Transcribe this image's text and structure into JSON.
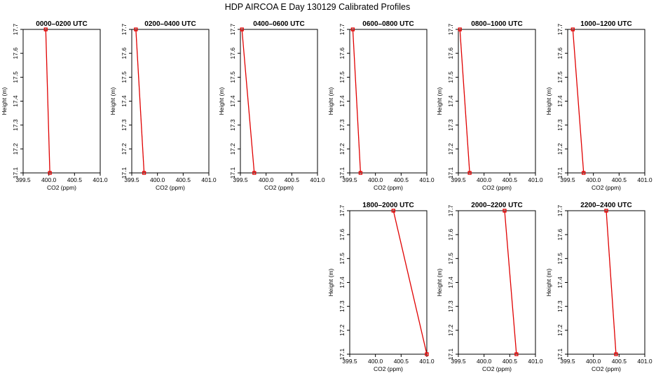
{
  "figure": {
    "title": "HDP AIRCOA E  Day 130129  Calibrated Profiles",
    "line_color": "#e00000",
    "point_color": "#e00000"
  },
  "chart_data": [
    {
      "type": "line",
      "title": "0000–0200 UTC",
      "xlabel": "CO2 (ppm)",
      "ylabel": "Height (m)",
      "xlim": [
        399.5,
        401.0
      ],
      "ylim": [
        17.1,
        17.7
      ],
      "xticks": [
        "399.5",
        "400.0",
        "400.5",
        "401.0"
      ],
      "yticks": [
        "17.1",
        "17.2",
        "17.3",
        "17.4",
        "17.5",
        "17.6",
        "17.7"
      ],
      "x": [
        399.94,
        400.02
      ],
      "y": [
        17.7,
        17.1
      ]
    },
    {
      "type": "line",
      "title": "0200–0400 UTC",
      "xlabel": "CO2 (ppm)",
      "ylabel": "Height (m)",
      "xlim": [
        399.5,
        401.0
      ],
      "ylim": [
        17.1,
        17.7
      ],
      "xticks": [
        "399.5",
        "400.0",
        "400.5",
        "401.0"
      ],
      "yticks": [
        "17.1",
        "17.2",
        "17.3",
        "17.4",
        "17.5",
        "17.6",
        "17.7"
      ],
      "x": [
        399.58,
        399.74
      ],
      "y": [
        17.7,
        17.1
      ]
    },
    {
      "type": "line",
      "title": "0400–0600 UTC",
      "xlabel": "CO2 (ppm)",
      "ylabel": "Height (m)",
      "xlim": [
        399.5,
        401.0
      ],
      "ylim": [
        17.1,
        17.7
      ],
      "xticks": [
        "399.5",
        "400.0",
        "400.5",
        "401.0"
      ],
      "yticks": [
        "17.1",
        "17.2",
        "17.3",
        "17.4",
        "17.5",
        "17.6",
        "17.7"
      ],
      "x": [
        399.53,
        399.77
      ],
      "y": [
        17.7,
        17.1
      ]
    },
    {
      "type": "line",
      "title": "0600–0800 UTC",
      "xlabel": "CO2 (ppm)",
      "ylabel": "Height (m)",
      "xlim": [
        399.5,
        401.0
      ],
      "ylim": [
        17.1,
        17.7
      ],
      "xticks": [
        "399.5",
        "400.0",
        "400.5",
        "401.0"
      ],
      "yticks": [
        "17.1",
        "17.2",
        "17.3",
        "17.4",
        "17.5",
        "17.6",
        "17.7"
      ],
      "x": [
        399.56,
        399.71
      ],
      "y": [
        17.7,
        17.1
      ]
    },
    {
      "type": "line",
      "title": "0800–1000 UTC",
      "xlabel": "CO2 (ppm)",
      "ylabel": "Height (m)",
      "xlim": [
        399.5,
        401.0
      ],
      "ylim": [
        17.1,
        17.7
      ],
      "xticks": [
        "399.5",
        "400.0",
        "400.5",
        "401.0"
      ],
      "yticks": [
        "17.1",
        "17.2",
        "17.3",
        "17.4",
        "17.5",
        "17.6",
        "17.7"
      ],
      "x": [
        399.53,
        399.72
      ],
      "y": [
        17.7,
        17.1
      ]
    },
    {
      "type": "line",
      "title": "1000–1200 UTC",
      "xlabel": "CO2 (ppm)",
      "ylabel": "Height (m)",
      "xlim": [
        399.5,
        401.0
      ],
      "ylim": [
        17.1,
        17.7
      ],
      "xticks": [
        "399.5",
        "400.0",
        "400.5",
        "401.0"
      ],
      "yticks": [
        "17.1",
        "17.2",
        "17.3",
        "17.4",
        "17.5",
        "17.6",
        "17.7"
      ],
      "x": [
        399.6,
        399.81
      ],
      "y": [
        17.7,
        17.1
      ]
    },
    {
      "type": "line",
      "title": "1800–2000 UTC",
      "xlabel": "CO2 (ppm)",
      "ylabel": "Height (m)",
      "xlim": [
        399.5,
        401.0
      ],
      "ylim": [
        17.1,
        17.7
      ],
      "xticks": [
        "399.5",
        "400.0",
        "400.5",
        "401.0"
      ],
      "yticks": [
        "17.1",
        "17.2",
        "17.3",
        "17.4",
        "17.5",
        "17.6",
        "17.7"
      ],
      "x": [
        400.35,
        401.0
      ],
      "y": [
        17.7,
        17.1
      ]
    },
    {
      "type": "line",
      "title": "2000–2200 UTC",
      "xlabel": "CO2 (ppm)",
      "ylabel": "Height (m)",
      "xlim": [
        399.5,
        401.0
      ],
      "ylim": [
        17.1,
        17.7
      ],
      "xticks": [
        "399.5",
        "400.0",
        "400.5",
        "401.0"
      ],
      "yticks": [
        "17.1",
        "17.2",
        "17.3",
        "17.4",
        "17.5",
        "17.6",
        "17.7"
      ],
      "x": [
        400.4,
        400.63
      ],
      "y": [
        17.7,
        17.1
      ]
    },
    {
      "type": "line",
      "title": "2200–2400 UTC",
      "xlabel": "CO2 (ppm)",
      "ylabel": "Height (m)",
      "xlim": [
        399.5,
        401.0
      ],
      "ylim": [
        17.1,
        17.7
      ],
      "xticks": [
        "399.5",
        "400.0",
        "400.5",
        "401.0"
      ],
      "yticks": [
        "17.1",
        "17.2",
        "17.3",
        "17.4",
        "17.5",
        "17.6",
        "17.7"
      ],
      "x": [
        400.25,
        400.44
      ],
      "y": [
        17.7,
        17.1
      ]
    }
  ]
}
